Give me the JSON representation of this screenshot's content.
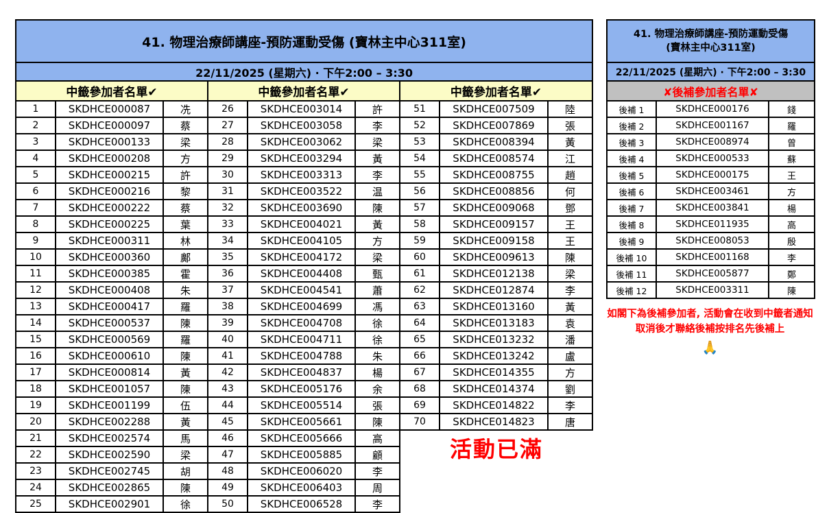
{
  "event": {
    "title": "41. 物理治療師講座-預防運動受傷 (寶林主中心311室)",
    "title_line1": "41. 物理治療師講座-預防運動受傷",
    "title_line2": "(寶林主中心311室)",
    "datetime": "22/11/2025 (星期六) · 下午2:00 – 3:30"
  },
  "winners": {
    "header": "中籤參加者名單✔",
    "full_text": "活動已滿",
    "rows": [
      {
        "no": "1",
        "code": "SKDHCE000087",
        "surname": "冼"
      },
      {
        "no": "2",
        "code": "SKDHCE000097",
        "surname": "蔡"
      },
      {
        "no": "3",
        "code": "SKDHCE000133",
        "surname": "梁"
      },
      {
        "no": "4",
        "code": "SKDHCE000208",
        "surname": "方"
      },
      {
        "no": "5",
        "code": "SKDHCE000215",
        "surname": "許"
      },
      {
        "no": "6",
        "code": "SKDHCE000216",
        "surname": "黎"
      },
      {
        "no": "7",
        "code": "SKDHCE000222",
        "surname": "蔡"
      },
      {
        "no": "8",
        "code": "SKDHCE000225",
        "surname": "葉"
      },
      {
        "no": "9",
        "code": "SKDHCE000311",
        "surname": "林"
      },
      {
        "no": "10",
        "code": "SKDHCE000360",
        "surname": "鄺"
      },
      {
        "no": "11",
        "code": "SKDHCE000385",
        "surname": "霍"
      },
      {
        "no": "12",
        "code": "SKDHCE000408",
        "surname": "朱"
      },
      {
        "no": "13",
        "code": "SKDHCE000417",
        "surname": "羅"
      },
      {
        "no": "14",
        "code": "SKDHCE000537",
        "surname": "陳"
      },
      {
        "no": "15",
        "code": "SKDHCE000569",
        "surname": "羅"
      },
      {
        "no": "16",
        "code": "SKDHCE000610",
        "surname": "陳"
      },
      {
        "no": "17",
        "code": "SKDHCE000814",
        "surname": "黃"
      },
      {
        "no": "18",
        "code": "SKDHCE001057",
        "surname": "陳"
      },
      {
        "no": "19",
        "code": "SKDHCE001199",
        "surname": "伍"
      },
      {
        "no": "20",
        "code": "SKDHCE002288",
        "surname": "黃"
      },
      {
        "no": "21",
        "code": "SKDHCE002574",
        "surname": "馬"
      },
      {
        "no": "22",
        "code": "SKDHCE002590",
        "surname": "梁"
      },
      {
        "no": "23",
        "code": "SKDHCE002745",
        "surname": "胡"
      },
      {
        "no": "24",
        "code": "SKDHCE002865",
        "surname": "陳"
      },
      {
        "no": "25",
        "code": "SKDHCE002901",
        "surname": "徐"
      },
      {
        "no": "26",
        "code": "SKDHCE003014",
        "surname": "許"
      },
      {
        "no": "27",
        "code": "SKDHCE003058",
        "surname": "李"
      },
      {
        "no": "28",
        "code": "SKDHCE003062",
        "surname": "梁"
      },
      {
        "no": "29",
        "code": "SKDHCE003294",
        "surname": "黃"
      },
      {
        "no": "30",
        "code": "SKDHCE003313",
        "surname": "李"
      },
      {
        "no": "31",
        "code": "SKDHCE003522",
        "surname": "温"
      },
      {
        "no": "32",
        "code": "SKDHCE003690",
        "surname": "陳"
      },
      {
        "no": "33",
        "code": "SKDHCE004021",
        "surname": "黃"
      },
      {
        "no": "34",
        "code": "SKDHCE004105",
        "surname": "方"
      },
      {
        "no": "35",
        "code": "SKDHCE004172",
        "surname": "梁"
      },
      {
        "no": "36",
        "code": "SKDHCE004408",
        "surname": "甄"
      },
      {
        "no": "37",
        "code": "SKDHCE004541",
        "surname": "蕭"
      },
      {
        "no": "38",
        "code": "SKDHCE004699",
        "surname": "馮"
      },
      {
        "no": "39",
        "code": "SKDHCE004708",
        "surname": "徐"
      },
      {
        "no": "40",
        "code": "SKDHCE004711",
        "surname": "徐"
      },
      {
        "no": "41",
        "code": "SKDHCE004788",
        "surname": "朱"
      },
      {
        "no": "42",
        "code": "SKDHCE004837",
        "surname": "楊"
      },
      {
        "no": "43",
        "code": "SKDHCE005176",
        "surname": "余"
      },
      {
        "no": "44",
        "code": "SKDHCE005514",
        "surname": "張"
      },
      {
        "no": "45",
        "code": "SKDHCE005661",
        "surname": "陳"
      },
      {
        "no": "46",
        "code": "SKDHCE005666",
        "surname": "高"
      },
      {
        "no": "47",
        "code": "SKDHCE005885",
        "surname": "顧"
      },
      {
        "no": "48",
        "code": "SKDHCE006020",
        "surname": "李"
      },
      {
        "no": "49",
        "code": "SKDHCE006403",
        "surname": "周"
      },
      {
        "no": "50",
        "code": "SKDHCE006528",
        "surname": "李"
      },
      {
        "no": "51",
        "code": "SKDHCE007509",
        "surname": "陸"
      },
      {
        "no": "52",
        "code": "SKDHCE007869",
        "surname": "張"
      },
      {
        "no": "53",
        "code": "SKDHCE008394",
        "surname": "黃"
      },
      {
        "no": "54",
        "code": "SKDHCE008574",
        "surname": "江"
      },
      {
        "no": "55",
        "code": "SKDHCE008755",
        "surname": "趙"
      },
      {
        "no": "56",
        "code": "SKDHCE008856",
        "surname": "何"
      },
      {
        "no": "57",
        "code": "SKDHCE009068",
        "surname": "鄧"
      },
      {
        "no": "58",
        "code": "SKDHCE009157",
        "surname": "王"
      },
      {
        "no": "59",
        "code": "SKDHCE009158",
        "surname": "王"
      },
      {
        "no": "60",
        "code": "SKDHCE009613",
        "surname": "陳"
      },
      {
        "no": "61",
        "code": "SKDHCE012138",
        "surname": "梁"
      },
      {
        "no": "62",
        "code": "SKDHCE012874",
        "surname": "李"
      },
      {
        "no": "63",
        "code": "SKDHCE013160",
        "surname": "黃"
      },
      {
        "no": "64",
        "code": "SKDHCE013183",
        "surname": "袁"
      },
      {
        "no": "65",
        "code": "SKDHCE013232",
        "surname": "潘"
      },
      {
        "no": "66",
        "code": "SKDHCE013242",
        "surname": "盧"
      },
      {
        "no": "67",
        "code": "SKDHCE014355",
        "surname": "方"
      },
      {
        "no": "68",
        "code": "SKDHCE014374",
        "surname": "劉"
      },
      {
        "no": "69",
        "code": "SKDHCE014822",
        "surname": "李"
      },
      {
        "no": "70",
        "code": "SKDHCE014823",
        "surname": "唐"
      }
    ]
  },
  "waitlist": {
    "header": "✘後補參加者名單✘",
    "rows": [
      {
        "no": "後補 1",
        "code": "SKDHCE000176",
        "surname": "錢"
      },
      {
        "no": "後補 2",
        "code": "SKDHCE001167",
        "surname": "羅"
      },
      {
        "no": "後補 3",
        "code": "SKDHCE008974",
        "surname": "曾"
      },
      {
        "no": "後補 4",
        "code": "SKDHCE000533",
        "surname": "蘇"
      },
      {
        "no": "後補 5",
        "code": "SKDHCE000175",
        "surname": "王"
      },
      {
        "no": "後補 6",
        "code": "SKDHCE003461",
        "surname": "方"
      },
      {
        "no": "後補 7",
        "code": "SKDHCE003841",
        "surname": "楊"
      },
      {
        "no": "後補 8",
        "code": "SKDHCE011935",
        "surname": "高"
      },
      {
        "no": "後補 9",
        "code": "SKDHCE008053",
        "surname": "殷"
      },
      {
        "no": "後補 10",
        "code": "SKDHCE001168",
        "surname": "李"
      },
      {
        "no": "後補 11",
        "code": "SKDHCE005877",
        "surname": "鄭"
      },
      {
        "no": "後補 12",
        "code": "SKDHCE003311",
        "surname": "陳"
      }
    ],
    "note": "如閣下為後補參加者, 活動會在收到中籤者通知取消後才聯絡後補按排名先後補上",
    "note_icon": "🙏"
  },
  "colors": {
    "header_blue": "#8FB3EE",
    "winner_yellow": "#FCFCC6",
    "waitlist_gray": "#C0C0C0",
    "alert_red": "#FF0000"
  }
}
